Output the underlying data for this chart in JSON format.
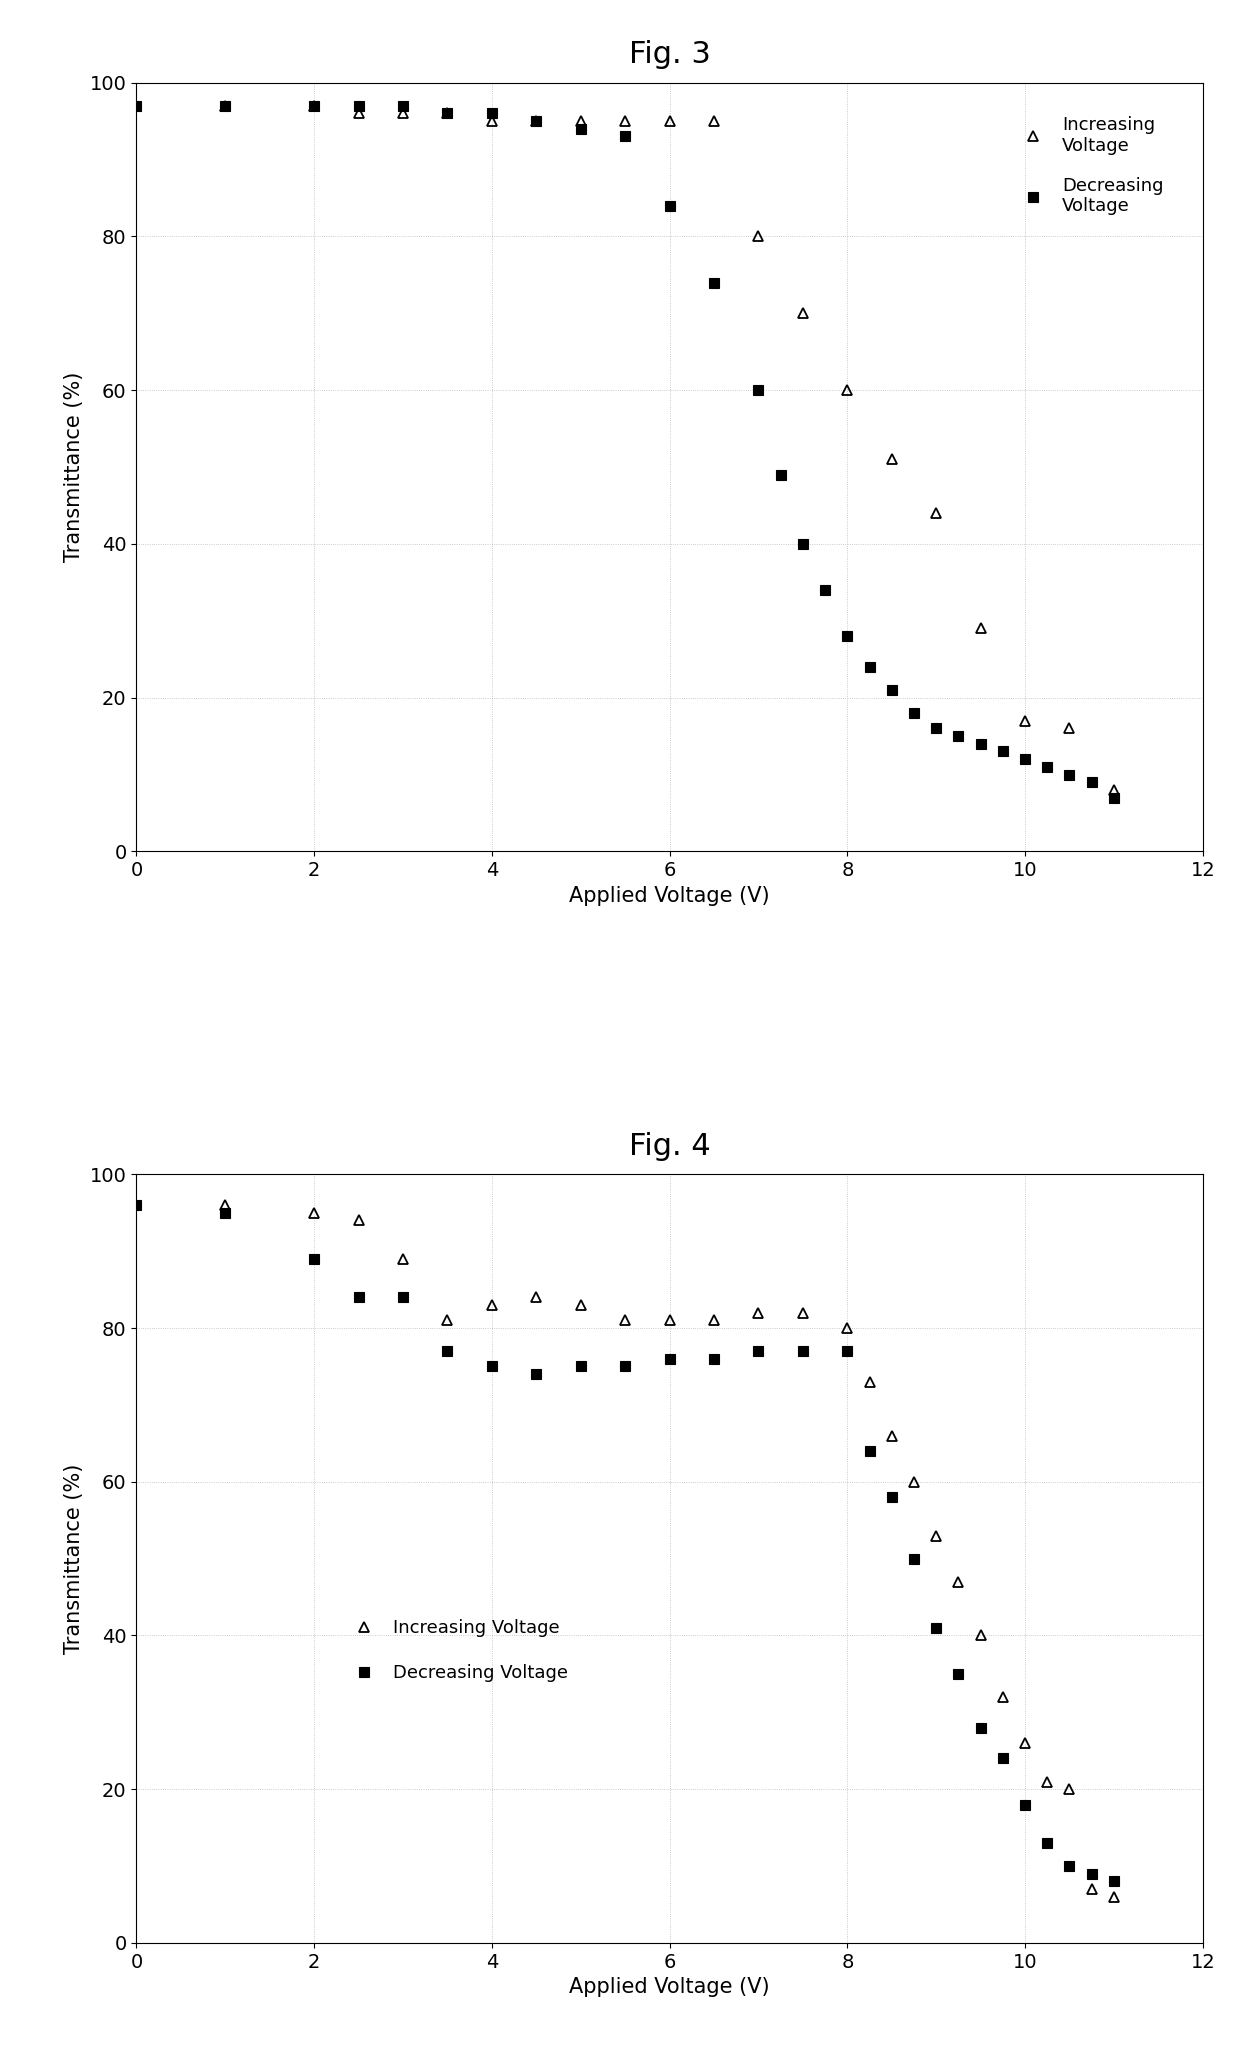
{
  "fig3_title": "Fig. 3",
  "fig4_title": "Fig. 4",
  "xlabel": "Applied Voltage (V)",
  "ylabel": "Transmittance (%)",
  "xlim": [
    0,
    12
  ],
  "ylim": [
    0,
    100
  ],
  "xticks": [
    0,
    2,
    4,
    6,
    8,
    10,
    12
  ],
  "yticks": [
    0,
    20,
    40,
    60,
    80,
    100
  ],
  "fig3_increasing_x": [
    0,
    1,
    2,
    2.5,
    3,
    3.5,
    4,
    4.5,
    5,
    5.5,
    6,
    6.5,
    7,
    7.5,
    8,
    8.5,
    9,
    9.5,
    10,
    10.5,
    11
  ],
  "fig3_increasing_y": [
    97,
    97,
    97,
    96,
    96,
    96,
    95,
    95,
    95,
    95,
    95,
    95,
    80,
    70,
    60,
    51,
    44,
    29,
    17,
    16,
    8
  ],
  "fig3_decreasing_x": [
    0,
    1,
    2,
    2.5,
    3,
    3.5,
    4,
    4.5,
    5,
    5.5,
    6,
    6.5,
    7,
    7.25,
    7.5,
    7.75,
    8,
    8.25,
    8.5,
    8.75,
    9,
    9.25,
    9.5,
    9.75,
    10,
    10.25,
    10.5,
    10.75,
    11
  ],
  "fig3_decreasing_y": [
    97,
    97,
    97,
    97,
    97,
    96,
    96,
    95,
    94,
    93,
    84,
    74,
    60,
    49,
    40,
    34,
    28,
    24,
    21,
    18,
    16,
    15,
    14,
    13,
    12,
    11,
    10,
    9,
    7
  ],
  "fig4_increasing_x": [
    0,
    1,
    2,
    2.5,
    3,
    3.5,
    4,
    4.5,
    5,
    5.5,
    6,
    6.5,
    7,
    7.5,
    8,
    8.25,
    8.5,
    8.75,
    9,
    9.25,
    9.5,
    9.75,
    10,
    10.25,
    10.5,
    10.75,
    11
  ],
  "fig4_increasing_y": [
    96,
    96,
    95,
    94,
    89,
    81,
    83,
    84,
    83,
    81,
    81,
    81,
    82,
    82,
    80,
    73,
    66,
    60,
    53,
    47,
    40,
    32,
    26,
    21,
    20,
    7,
    6
  ],
  "fig4_decreasing_x": [
    0,
    1,
    2,
    2.5,
    3,
    3.5,
    4,
    4.5,
    5,
    5.5,
    6,
    6.5,
    7,
    7.5,
    8,
    8.25,
    8.5,
    8.75,
    9,
    9.25,
    9.5,
    9.75,
    10,
    10.25,
    10.5,
    10.75,
    11
  ],
  "fig4_decreasing_y": [
    96,
    95,
    89,
    84,
    84,
    77,
    75,
    74,
    75,
    75,
    76,
    76,
    77,
    77,
    77,
    64,
    58,
    50,
    41,
    35,
    28,
    24,
    18,
    13,
    10,
    9,
    8
  ],
  "fig3_legend_inc": "Increasing\nVoltage",
  "fig3_legend_dec": "Decreasing\nVoltage",
  "fig4_legend_inc": "Increasing Voltage",
  "fig4_legend_dec": "Decreasing Voltage",
  "marker_inc": "^",
  "marker_dec": "s",
  "marker_color_inc": "none",
  "marker_color_dec": "black",
  "marker_edge_inc": "black",
  "marker_edge_dec": "black",
  "markersize": 7,
  "background_color": "#ffffff",
  "title_fontsize": 22,
  "label_fontsize": 15,
  "tick_fontsize": 14,
  "legend_fontsize": 13
}
